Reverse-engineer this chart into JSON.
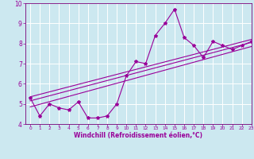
{
  "xlabel": "Windchill (Refroidissement éolien,°C)",
  "xlim": [
    -0.5,
    23
  ],
  "ylim": [
    4,
    10
  ],
  "xticks": [
    0,
    1,
    2,
    3,
    4,
    5,
    6,
    7,
    8,
    9,
    10,
    11,
    12,
    13,
    14,
    15,
    16,
    17,
    18,
    19,
    20,
    21,
    22,
    23
  ],
  "yticks": [
    4,
    5,
    6,
    7,
    8,
    9,
    10
  ],
  "x": [
    0,
    1,
    2,
    3,
    4,
    5,
    6,
    7,
    8,
    9,
    10,
    11,
    12,
    13,
    14,
    15,
    16,
    17,
    18,
    19,
    20,
    21,
    22,
    23
  ],
  "y": [
    5.3,
    4.4,
    5.0,
    4.8,
    4.7,
    5.1,
    4.3,
    4.3,
    4.4,
    5.0,
    6.4,
    7.1,
    7.0,
    8.4,
    9.0,
    9.7,
    8.3,
    7.9,
    7.3,
    8.1,
    7.9,
    7.7,
    7.9,
    8.1
  ],
  "line_color": "#990099",
  "bg_color": "#cce8f0",
  "grid_color": "#ffffff",
  "trend_lines": [
    {
      "x0": 0,
      "y0": 5.15,
      "x1": 23,
      "y1": 8.05
    },
    {
      "x0": 0,
      "y0": 4.85,
      "x1": 23,
      "y1": 7.85
    },
    {
      "x0": 0,
      "y0": 5.35,
      "x1": 23,
      "y1": 8.2
    }
  ]
}
